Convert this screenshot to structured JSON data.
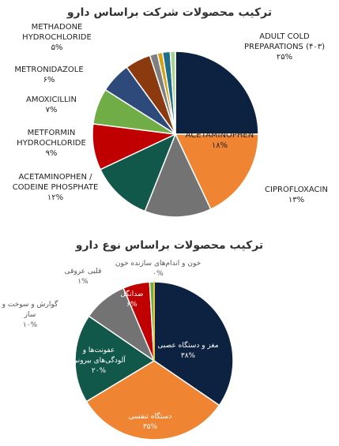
{
  "chart_data": [
    {
      "type": "pie",
      "title": "ترکیب محصولات شرکت براساس دارو",
      "categories": [
        "ADULT COLD PREPARATIONS (۴۰۳)",
        "ACETAMINOPHEN",
        "CIPROFLOXACIN",
        "ACETAMINOPHEN / CODEINE PHOSPHATE",
        "METFORMIN HYDROCHLORIDE",
        "AMOXICILLIN",
        "METRONIDAZOLE",
        "METHADONE HYDROCHLORIDE",
        null,
        null,
        null,
        null
      ],
      "values": [
        25,
        18,
        13,
        12,
        9,
        7,
        6,
        5,
        1.5,
        1,
        1.5,
        1
      ],
      "value_labels": [
        "۲۵%",
        "۱۸%",
        "۱۳%",
        "۱۲%",
        "۹%",
        "۷%",
        "۶%",
        "۵%",
        null,
        null,
        null,
        null
      ],
      "colors": [
        "#0d2240",
        "#ef8533",
        "#737373",
        "#11574a",
        "#c00000",
        "#70ad47",
        "#2e4a7a",
        "#8b3a0f",
        "#7f7f7f",
        "#d4a017",
        "#1f6f8b",
        "#a9d18e"
      ]
    },
    {
      "type": "pie",
      "title": "ترکیب محصولات براساس نوع دارو",
      "categories": [
        "مغز و دستگاه عصبی",
        "دستگاه تنفسی",
        "عفونت‌ها و آلودگی‌های بیرونی",
        "گوارش و سوخت و ساز",
        "ضدانگل",
        "قلبی عروقی",
        "خون و اندام‌های سازنده خون"
      ],
      "values": [
        38,
        35,
        20,
        10,
        6,
        1,
        0
      ],
      "value_labels": [
        "۳۸%",
        "۳۵%",
        "۲۰%",
        "۱۰%",
        "۶%",
        "۱%",
        "۰%"
      ],
      "colors": [
        "#0d2240",
        "#ef8533",
        "#11574a",
        "#737373",
        "#c00000",
        "#70ad47",
        "#e6c84a"
      ]
    }
  ]
}
